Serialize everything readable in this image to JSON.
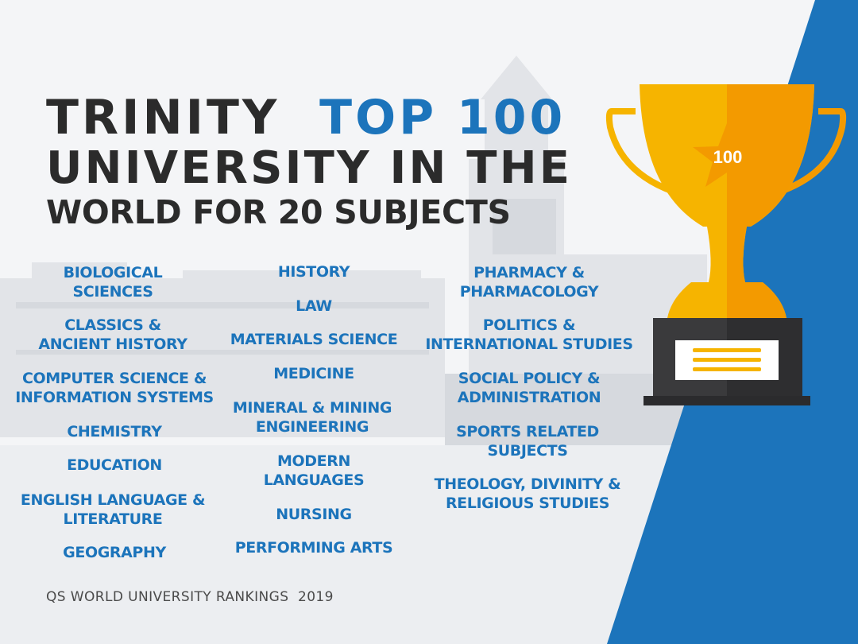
{
  "title": {
    "line1_a": "TRINITY",
    "line1_b": "TOP 100",
    "line2": "UNIVERSITY IN THE",
    "line3": "WORLD FOR 20 SUBJECTS"
  },
  "trophy": {
    "badge": "100"
  },
  "subjects": {
    "col1": [
      "BIOLOGICAL\nSCIENCES",
      "CLASSICS &\nANCIENT HISTORY",
      "COMPUTER SCIENCE &\nINFORMATION SYSTEMS",
      "CHEMISTRY",
      "EDUCATION",
      "ENGLISH LANGUAGE &\nLITERATURE",
      "GEOGRAPHY"
    ],
    "col2": [
      "HISTORY",
      "LAW",
      "MATERIALS SCIENCE",
      "MEDICINE",
      "MINERAL & MINING\nENGINEERING",
      "MODERN\nLANGUAGES",
      "NURSING",
      "PERFORMING ARTS"
    ],
    "col3": [
      "PHARMACY &\nPHARMACOLOGY",
      "POLITICS &\nINTERNATIONAL STUDIES",
      "SOCIAL POLICY &\nADMINISTRATION",
      "SPORTS RELATED\nSUBJECTS",
      "THEOLOGY, DIVINITY &\nRELIGIOUS STUDIES"
    ]
  },
  "footer": "QS WORLD UNIVERSITY RANKINGS  2019",
  "colors": {
    "accent_blue": "#1c74bb",
    "title_dark": "#2b2b2b",
    "trophy_gold": "#f6b400",
    "trophy_orange": "#f39a00"
  }
}
